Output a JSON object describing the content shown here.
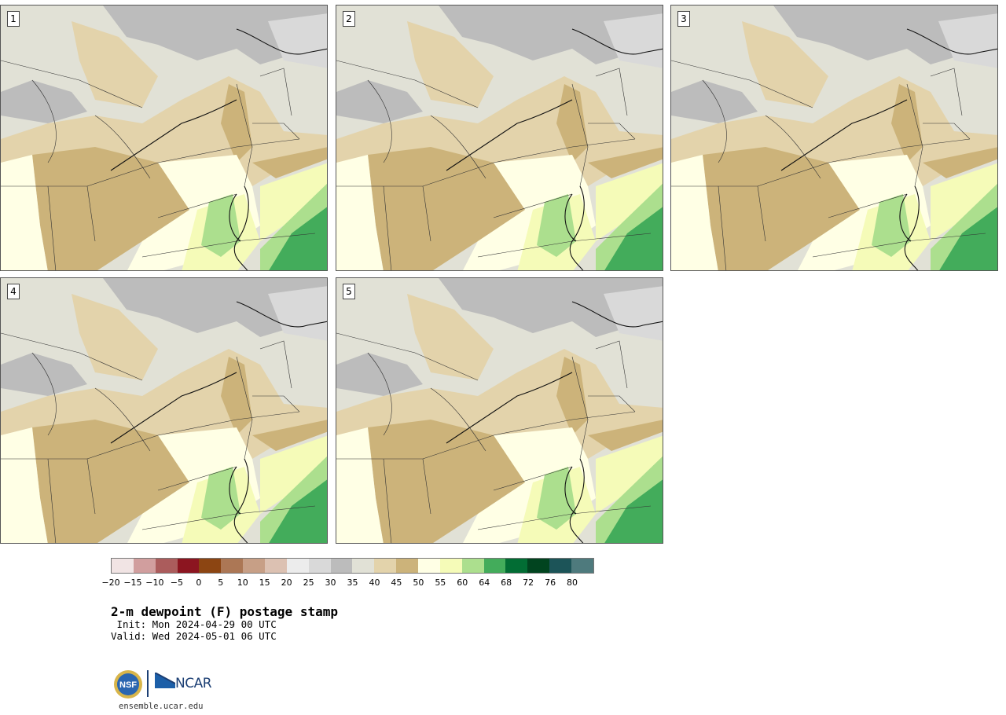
{
  "panels": [
    {
      "label": "1"
    },
    {
      "label": "2"
    },
    {
      "label": "3"
    },
    {
      "label": "4"
    },
    {
      "label": "5"
    }
  ],
  "colorbar": {
    "colors": [
      "#f1e4e4",
      "#d19e9e",
      "#ab5c5c",
      "#8c1520",
      "#8c4512",
      "#ac7755",
      "#c79f86",
      "#dcc1b2",
      "#ececec",
      "#d9d9d9",
      "#bcbcbc",
      "#e1e1d6",
      "#e3d3ab",
      "#ccb37a",
      "#ffffe5",
      "#f5fbb8",
      "#acdf8e",
      "#43ac5b",
      "#026d34",
      "#01441f",
      "#1c5458",
      "#4e7a7d"
    ],
    "ticks": [
      "−20",
      "−15",
      "−10",
      "−5",
      "0",
      "5",
      "10",
      "15",
      "20",
      "25",
      "30",
      "35",
      "40",
      "45",
      "50",
      "55",
      "60",
      "64",
      "68",
      "72",
      "76",
      "80"
    ]
  },
  "title": "2-m dewpoint (F) postage stamp",
  "init": " Init: Mon 2024-04-29 00 UTC",
  "valid": "Valid: Wed 2024-05-01 06 UTC",
  "logo": {
    "nsf_text": "NSF",
    "ncar_text": "NCAR"
  },
  "footer_url": "ensemble.ucar.edu"
}
